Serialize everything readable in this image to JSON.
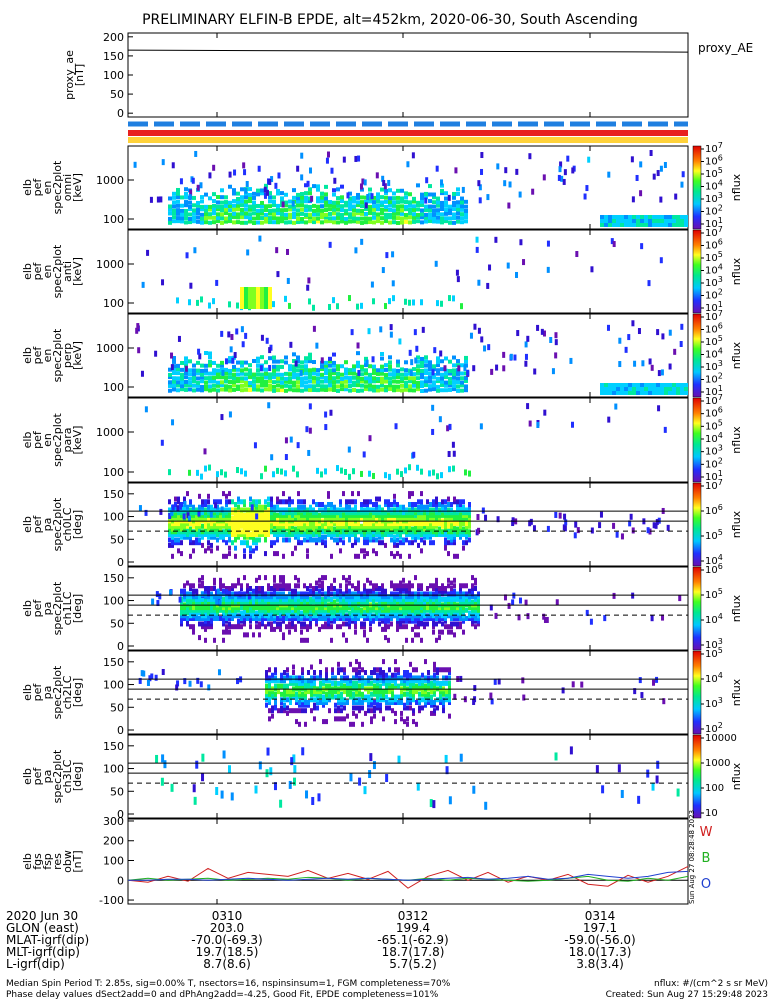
{
  "title": "PRELIMINARY ELFIN-B EPDE, alt=452km, 2020-06-30, South Ascending",
  "proxy_ae": {
    "ylabel": "proxy_ae\n[nT]",
    "side_label": "proxy_AE",
    "ticks": [
      "200",
      "150",
      "100",
      "50",
      "0"
    ],
    "ylim": [
      -10,
      210
    ],
    "value_start": 165,
    "value_end": 160
  },
  "status_bars": {
    "dashed_color": "#1f7fe0",
    "bar1_color": "#e82020",
    "bar2_color": "#ffd23a"
  },
  "spectro_panels": [
    {
      "id": "en_omni",
      "ylabel": [
        "elb",
        "pef",
        "en",
        "spec2plot",
        "omni",
        "[keV]"
      ],
      "ticks": [
        "1000",
        "100"
      ],
      "cbar_ticks": [
        "10^7",
        "10^6",
        "10^5",
        "10^4",
        "10^3",
        "10^2",
        "10^1"
      ],
      "cbar_label": "nflux"
    },
    {
      "id": "en_anti",
      "ylabel": [
        "elb",
        "pef",
        "en",
        "spec2plot",
        "anti",
        "[keV]"
      ],
      "ticks": [
        "1000",
        "100"
      ],
      "cbar_ticks": [
        "10^7",
        "10^6",
        "10^5",
        "10^4",
        "10^3",
        "10^2",
        "10^1"
      ],
      "cbar_label": "nflux"
    },
    {
      "id": "en_perp",
      "ylabel": [
        "elb",
        "pef",
        "en",
        "spec2plot",
        "perp",
        "[keV]"
      ],
      "ticks": [
        "1000",
        "100"
      ],
      "cbar_ticks": [
        "10^7",
        "10^6",
        "10^5",
        "10^4",
        "10^3",
        "10^2",
        "10^1"
      ],
      "cbar_label": "nflux"
    },
    {
      "id": "en_para",
      "ylabel": [
        "elb",
        "pef",
        "en",
        "spec2plot",
        "para",
        "[keV]"
      ],
      "ticks": [
        "1000",
        "100"
      ],
      "cbar_ticks": [
        "10^7",
        "10^6",
        "10^5",
        "10^4",
        "10^3",
        "10^2",
        "10^1"
      ],
      "cbar_label": "nflux"
    }
  ],
  "pa_panels": [
    {
      "id": "ch0LC",
      "ylabel": [
        "elb",
        "pef",
        "pa",
        "spec2plot",
        "ch0LC",
        "[deg]"
      ],
      "ticks": [
        "150",
        "100",
        "50",
        "0"
      ],
      "cbar_ticks": [
        "10^7",
        "10^6",
        "10^5",
        "10^4"
      ],
      "cbar_label": "nflux"
    },
    {
      "id": "ch1LC",
      "ylabel": [
        "elb",
        "pef",
        "pa",
        "spec2plot",
        "ch1LC",
        "[deg]"
      ],
      "ticks": [
        "150",
        "100",
        "50",
        "0"
      ],
      "cbar_ticks": [
        "10^6",
        "10^5",
        "10^4",
        "10^3"
      ],
      "cbar_label": "nflux"
    },
    {
      "id": "ch2LC",
      "ylabel": [
        "elb",
        "pef",
        "pa",
        "spec2plot",
        "ch2LC",
        "[deg]"
      ],
      "ticks": [
        "150",
        "100",
        "50",
        "0"
      ],
      "cbar_ticks": [
        "10^5",
        "10^4",
        "10^3",
        "10^2"
      ],
      "cbar_label": "nflux"
    },
    {
      "id": "ch3LC",
      "ylabel": [
        "elb",
        "pef",
        "pa",
        "spec2plot",
        "ch3LC",
        "[deg]"
      ],
      "ticks": [
        "150",
        "100",
        "50",
        "0"
      ],
      "cbar_ticks": [
        "10000",
        "1000",
        "100",
        "10"
      ],
      "cbar_label": "nflux"
    }
  ],
  "fgm_panel": {
    "ylabel": [
      "elb",
      "fgs",
      "fsp",
      "res",
      "obw",
      "[nT]"
    ],
    "ticks": [
      "300",
      "200",
      "100",
      "0",
      "-100"
    ],
    "ylim": [
      -120,
      310
    ],
    "legend": [
      {
        "label": "W",
        "color": "#d02020"
      },
      {
        "label": "B",
        "color": "#20b020"
      },
      {
        "label": "O",
        "color": "#2040d0"
      }
    ],
    "stamp": "Sun Aug 27 08:28:48 2023"
  },
  "chart_data": {
    "type": "heatmap",
    "x_ticks": [
      "0310",
      "0312",
      "0314"
    ],
    "x_units": "UT (HHMM)",
    "series": [
      {
        "name": "W",
        "values": [
          0,
          -10,
          20,
          -5,
          60,
          10,
          40,
          30,
          20,
          50,
          10,
          35,
          5,
          45,
          -40,
          20,
          50,
          0,
          40,
          -10,
          20,
          0,
          30,
          -20,
          -30,
          25,
          -10,
          20,
          70
        ]
      },
      {
        "name": "B",
        "values": [
          0,
          10,
          0,
          5,
          10,
          0,
          5,
          10,
          5,
          15,
          10,
          0,
          10,
          5,
          0,
          10,
          0,
          10,
          5,
          0,
          -5,
          0,
          10,
          20,
          0,
          -5,
          10,
          0,
          20
        ]
      },
      {
        "name": "O",
        "values": [
          0,
          0,
          5,
          5,
          0,
          5,
          10,
          5,
          0,
          5,
          10,
          5,
          10,
          5,
          0,
          5,
          10,
          15,
          5,
          10,
          20,
          5,
          10,
          30,
          20,
          10,
          20,
          40,
          45
        ]
      }
    ]
  },
  "footer": {
    "rows": [
      {
        "label": "2020 Jun 30",
        "values": [
          "0310",
          "0312",
          "0314"
        ]
      },
      {
        "label": "GLON (east)",
        "values": [
          "203.0",
          "199.4",
          "197.1"
        ]
      },
      {
        "label": "MLAT-igrf(dip)",
        "values": [
          "-70.0(-69.3)",
          "-65.1(-62.9)",
          "-59.0(-56.0)"
        ]
      },
      {
        "label": "MLT-igrf(dip)",
        "values": [
          "19.7(18.5)",
          "18.7(17.8)",
          "18.0(17.3)"
        ]
      },
      {
        "label": "L-igrf(dip)",
        "values": [
          "8.7(8.6)",
          "5.7(5.2)",
          "3.8(3.4)"
        ]
      }
    ],
    "note1": "Median Spin Period T: 2.85s, sig=0.00% T, nsectors=16, nspinsinsum=1, FGM completeness=70%",
    "note2": "Phase delay values dSect2add=0 and dPhAng2add=-4.25, Good Fit, EPDE completeness=101%",
    "units": "nflux: #/(cm^2 s sr MeV)",
    "created": "Created: Sun Aug 27 15:29:48 2023"
  }
}
